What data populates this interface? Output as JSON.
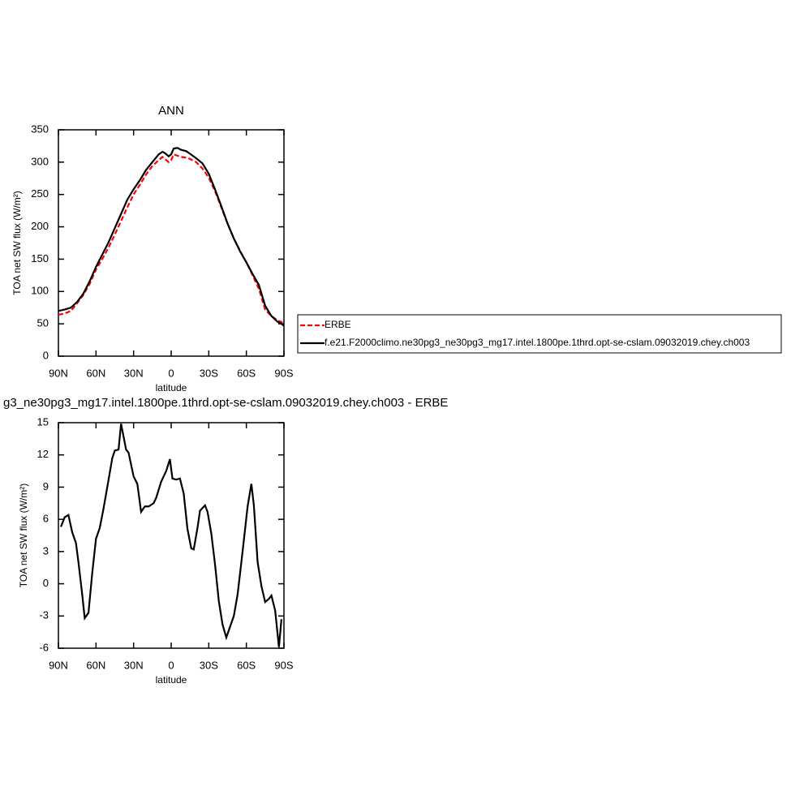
{
  "chart_data": [
    {
      "type": "line",
      "title": "ANN",
      "ylabel": "TOA net SW flux (W/m²)",
      "xlabel": "latitude",
      "xlim": [
        90,
        -90
      ],
      "xticks": [
        {
          "value": 90,
          "label": "90N"
        },
        {
          "value": 60,
          "label": "60N"
        },
        {
          "value": 30,
          "label": "30N"
        },
        0,
        {
          "value": -30,
          "label": "30S"
        },
        {
          "value": -60,
          "label": "60S"
        },
        {
          "value": -90,
          "label": "90S"
        }
      ],
      "ylim": [
        0,
        350
      ],
      "yticks": [
        0,
        50,
        100,
        150,
        200,
        250,
        300,
        350
      ],
      "x": [
        90,
        85,
        80,
        75,
        70,
        65,
        60,
        55,
        50,
        45,
        40,
        35,
        30,
        25,
        20,
        15,
        10,
        7,
        5,
        2,
        0,
        -2,
        -5,
        -8,
        -12,
        -15,
        -20,
        -25,
        -30,
        -35,
        -40,
        -45,
        -50,
        -55,
        -60,
        -65,
        -70,
        -75,
        -80,
        -85,
        -88,
        -90
      ],
      "series": [
        {
          "name": "ERBE",
          "color": "#ff0000",
          "dash": true,
          "values": [
            64,
            66,
            70,
            82,
            95,
            112,
            134,
            150,
            168,
            188,
            209,
            230,
            250,
            265,
            281,
            294,
            303,
            308,
            305,
            300,
            303,
            312,
            310,
            308,
            307,
            305,
            300,
            290,
            276,
            255,
            230,
            205,
            182,
            163,
            145,
            125,
            104,
            72,
            62,
            55,
            53,
            48
          ]
        },
        {
          "name": "f.e21.F2000climo.ne30pg3_ne30pg3_mg17.intel.1800pe.1thrd.opt-se-cslam.09032019.chey.ch003",
          "color": "#000000",
          "dash": false,
          "values": [
            70,
            72,
            75,
            84,
            97,
            116,
            138,
            157,
            176,
            198,
            220,
            242,
            258,
            272,
            288,
            300,
            312,
            316,
            314,
            309,
            312,
            321,
            322,
            319,
            317,
            313,
            306,
            298,
            282,
            258,
            232,
            205,
            182,
            162,
            145,
            127,
            110,
            78,
            62,
            53,
            50,
            47
          ]
        }
      ]
    },
    {
      "type": "line",
      "title": "g3_ne30pg3_mg17.intel.1800pe.1thrd.opt-se-cslam.09032019.chey.ch003 - ERBE",
      "ylabel": "TOA net SW flux (W/m²)",
      "xlabel": "latitude",
      "xlim": [
        90,
        -90
      ],
      "xticks": [
        {
          "value": 90,
          "label": "90N"
        },
        {
          "value": 60,
          "label": "60N"
        },
        {
          "value": 30,
          "label": "30N"
        },
        0,
        {
          "value": -30,
          "label": "30S"
        },
        {
          "value": -60,
          "label": "60S"
        },
        {
          "value": -90,
          "label": "90S"
        }
      ],
      "ylim": [
        -6,
        15
      ],
      "yticks": [
        -6,
        -3,
        0,
        3,
        6,
        9,
        12,
        15
      ],
      "x": [
        88,
        85,
        82,
        79,
        76,
        74,
        71,
        69,
        66,
        63,
        60,
        57,
        54,
        51,
        47,
        45,
        42,
        40,
        36,
        34,
        30,
        27,
        24,
        21,
        18,
        14,
        12,
        8,
        4,
        1,
        -1,
        -4,
        -7,
        -10,
        -13,
        -16,
        -18,
        -21,
        -23,
        -27,
        -29,
        -32,
        -35,
        -38,
        -41,
        -44,
        -47,
        -50,
        -53,
        -56,
        -59,
        -61,
        -64,
        -66,
        -69,
        -72,
        -75,
        -78,
        -80,
        -83,
        -86,
        -88
      ],
      "color": "#000000",
      "values": [
        5.3,
        6.2,
        6.4,
        4.8,
        3.8,
        2,
        -1,
        -3.2,
        -2.7,
        1,
        4.2,
        5.2,
        7,
        9,
        11.7,
        12.4,
        12.5,
        14.9,
        12.5,
        12.2,
        10,
        9.3,
        6.7,
        7.2,
        7.2,
        7.5,
        8,
        9.5,
        10.5,
        11.6,
        9.8,
        9.7,
        9.8,
        8.4,
        5.1,
        3.3,
        3.2,
        5.2,
        6.8,
        7.3,
        6.7,
        4.7,
        1.8,
        -1.6,
        -3.8,
        -5,
        -4,
        -3,
        -1,
        2,
        5.1,
        7.2,
        9.3,
        7.3,
        2,
        -0.2,
        -1.7,
        -1.4,
        -1.1,
        -2.5,
        -5.9,
        -3.3
      ]
    }
  ]
}
